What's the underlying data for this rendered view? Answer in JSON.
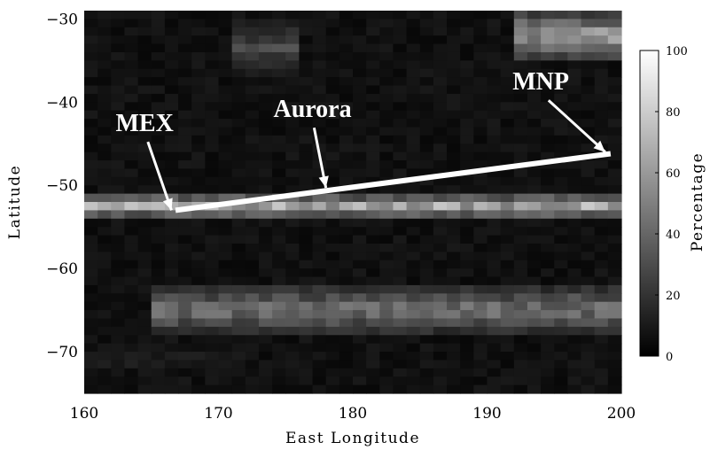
{
  "chart_data": {
    "type": "heatmap",
    "xlabel": "East Longitude",
    "ylabel": "Latitude",
    "xlim": [
      160,
      200
    ],
    "ylim": [
      -75,
      -29
    ],
    "xticks": [
      160,
      170,
      180,
      190,
      200
    ],
    "yticks": [
      -30,
      -40,
      -50,
      -60,
      -70
    ],
    "colorbar": {
      "label": "Percentage",
      "range": [
        0,
        100
      ],
      "ticks": [
        0,
        20,
        40,
        60,
        80,
        100
      ],
      "colormap": "grayscale"
    },
    "grid": false,
    "cell_size_deg": 1,
    "bright_regions": [
      {
        "lon_range": [
          160,
          200
        ],
        "lat_range": [
          -54,
          -51
        ],
        "peak_percent": 80
      },
      {
        "lon_range": [
          165,
          200
        ],
        "lat_range": [
          -68,
          -62
        ],
        "peak_percent": 55
      },
      {
        "lon_range": [
          192,
          200
        ],
        "lat_range": [
          -35,
          -29
        ],
        "peak_percent": 75
      },
      {
        "lon_range": [
          171,
          176
        ],
        "lat_range": [
          -37,
          -30
        ],
        "peak_percent": 35
      },
      {
        "lon_range": [
          160,
          172
        ],
        "lat_range": [
          -72,
          -70
        ],
        "peak_percent": 20
      }
    ],
    "track": {
      "points": [
        [
          166.8,
          -53.0
        ],
        [
          199.2,
          -46.2
        ]
      ],
      "color": "#ffffff"
    },
    "annotations": [
      {
        "text": "MEX",
        "target": [
          166.5,
          -53.0
        ],
        "label_at": [
          164.5,
          -43.5
        ]
      },
      {
        "text": "Aurora",
        "target": [
          178.0,
          -50.3
        ],
        "label_at": [
          177.0,
          -41.8
        ]
      },
      {
        "text": "MNP",
        "target": [
          198.8,
          -46.0
        ],
        "label_at": [
          194.0,
          -38.5
        ]
      }
    ]
  }
}
